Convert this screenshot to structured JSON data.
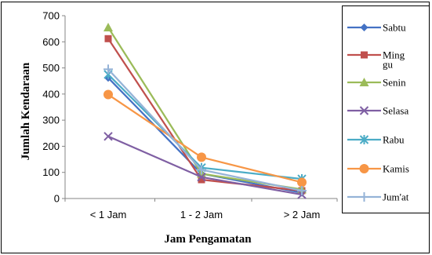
{
  "chart_data": {
    "type": "line",
    "title": "",
    "xlabel": "Jam Pengamatan",
    "ylabel": "Jumlah Kendaraan",
    "categories": [
      "< 1 Jam",
      "1 - 2 Jam",
      "> 2 Jam"
    ],
    "ylim": [
      0,
      700
    ],
    "yticks": [
      "0",
      "100",
      "200",
      "300",
      "400",
      "500",
      "600",
      "700"
    ],
    "grid": false,
    "legend_position": "right",
    "series": [
      {
        "name": "Sabtu",
        "color": "#4472C4",
        "marker": "diamond",
        "values": [
          462,
          95,
          22
        ]
      },
      {
        "name": "Minggu",
        "legend_lines": [
          "Ming",
          "gu"
        ],
        "color": "#C0504D",
        "marker": "square",
        "values": [
          612,
          72,
          30
        ]
      },
      {
        "name": "Senin",
        "color": "#9BBB59",
        "marker": "triangle",
        "values": [
          655,
          95,
          35
        ]
      },
      {
        "name": "Selasa",
        "color": "#7F5FA3",
        "marker": "x",
        "values": [
          238,
          82,
          15
        ]
      },
      {
        "name": "Rabu",
        "color": "#4BACC6",
        "marker": "star",
        "values": [
          475,
          118,
          75
        ]
      },
      {
        "name": "Kamis",
        "color": "#F79646",
        "marker": "circle",
        "values": [
          398,
          158,
          62
        ]
      },
      {
        "name": "Jum'at",
        "color": "#95B3D7",
        "marker": "plus",
        "values": [
          495,
          110,
          30
        ]
      }
    ]
  }
}
